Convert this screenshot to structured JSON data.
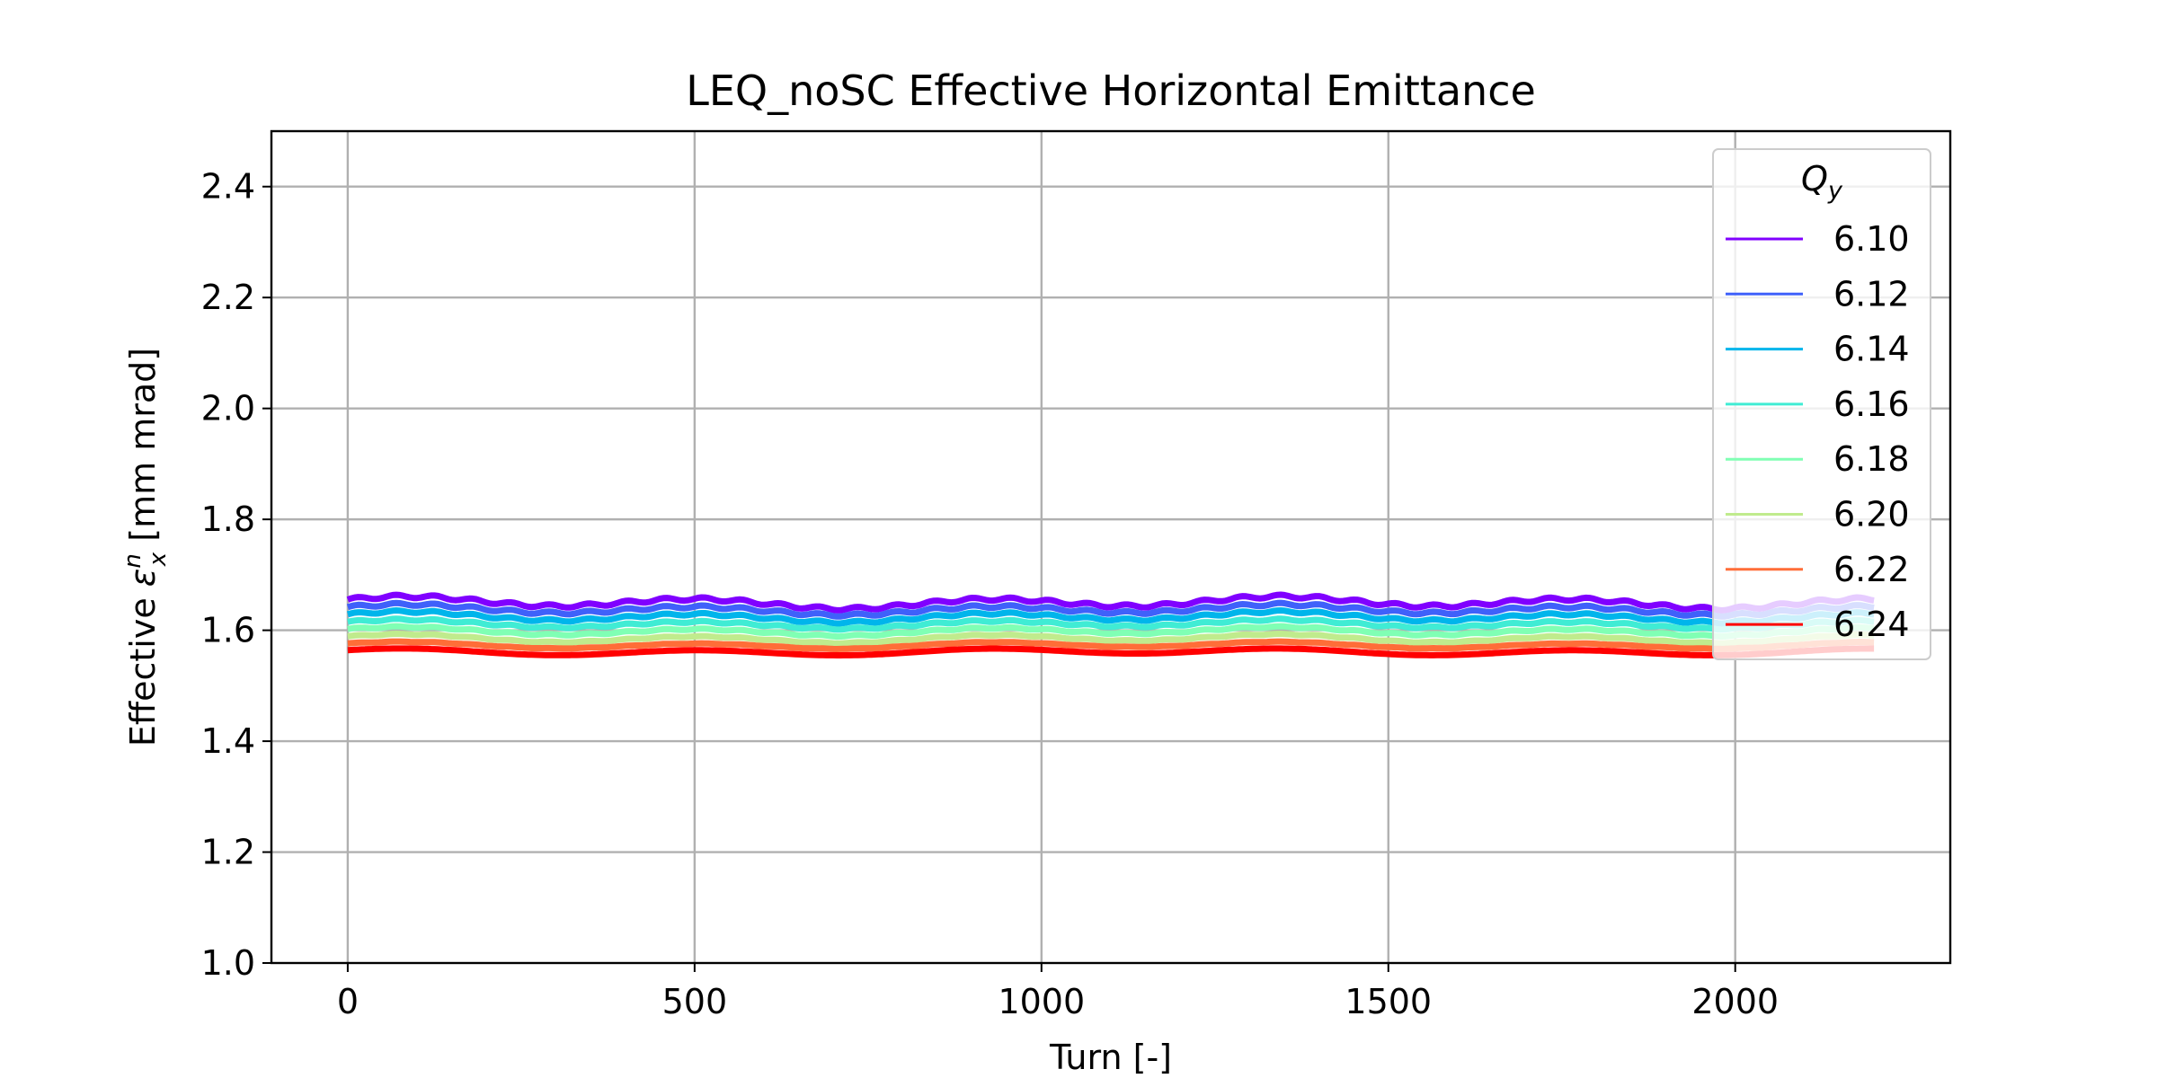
{
  "chart_data": {
    "type": "line",
    "title": "LEQ_noSC Effective Horizontal Emittance",
    "xlabel": "Turn [-]",
    "ylabel": {
      "prefix": "Effective ",
      "symbol": "ε",
      "subscript": "x",
      "superscript": "n",
      "suffix": " [mm mrad]"
    },
    "xlim": [
      -110,
      2310
    ],
    "ylim": [
      1.0,
      2.5
    ],
    "xticks": [
      0,
      500,
      1000,
      1500,
      2000
    ],
    "yticks": [
      1.0,
      1.2,
      1.4,
      1.6,
      1.8,
      2.0,
      2.2,
      2.4
    ],
    "ytick_labels": [
      "1.0",
      "1.2",
      "1.4",
      "1.6",
      "1.8",
      "2.0",
      "2.2",
      "2.4"
    ],
    "grid": true,
    "legend": {
      "title_base": "Q",
      "title_subscript": "y",
      "placement": "upper right"
    },
    "x_range": [
      0,
      2200
    ],
    "series": [
      {
        "name": "6.10",
        "color": "#8000ff",
        "base": 1.65,
        "amplitude": 0.008
      },
      {
        "name": "6.12",
        "color": "#3f61fa",
        "base": 1.637,
        "amplitude": 0.007
      },
      {
        "name": "6.14",
        "color": "#00b5eb",
        "base": 1.624,
        "amplitude": 0.007
      },
      {
        "name": "6.16",
        "color": "#40ecd4",
        "base": 1.611,
        "amplitude": 0.006
      },
      {
        "name": "6.18",
        "color": "#80ffb4",
        "base": 1.598,
        "amplitude": 0.006
      },
      {
        "name": "6.20",
        "color": "#c0eb8d",
        "base": 1.585,
        "amplitude": 0.006
      },
      {
        "name": "6.22",
        "color": "#ff6d38",
        "base": 1.573,
        "amplitude": 0.005
      },
      {
        "name": "6.24",
        "color": "#ff0000",
        "base": 1.561,
        "amplitude": 0.005
      }
    ]
  }
}
